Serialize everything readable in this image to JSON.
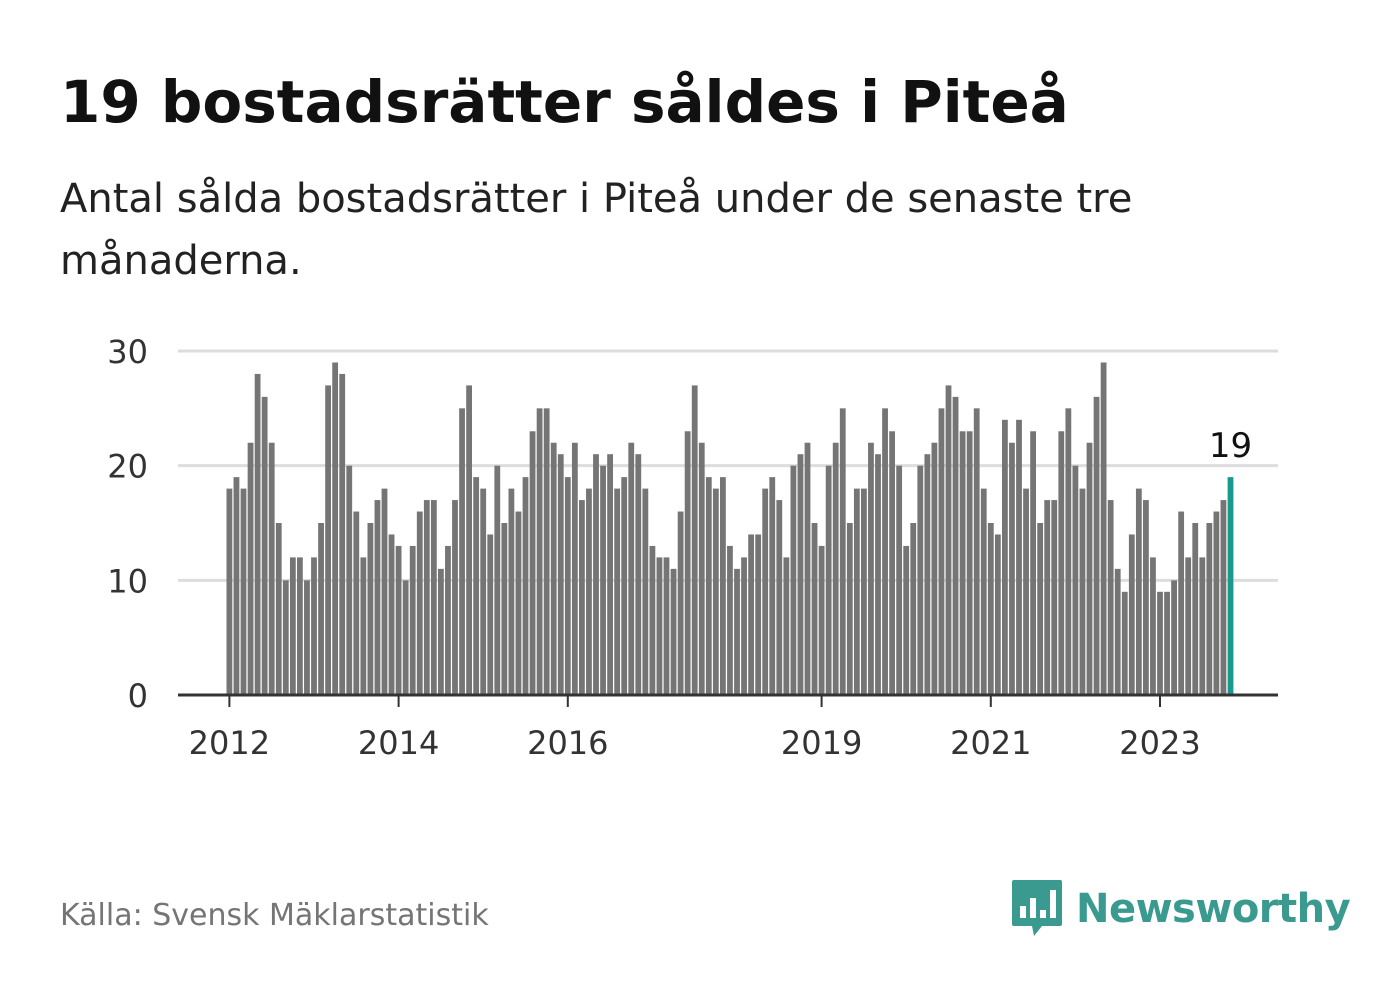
{
  "title": "19 bostadsrätter såldes i Piteå",
  "subtitle": "Antal sålda bostadsrätter i Piteå under de senaste tre månaderna.",
  "source": "Källa: Svensk Mäklarstatistik",
  "logo": {
    "name": "Newsworthy",
    "icon": "newsworthy-bar-chart-icon"
  },
  "colors": {
    "bar": "#757575",
    "highlight": "#1a9a8c",
    "grid": "#dddddd",
    "axis": "#333333"
  },
  "chart_data": {
    "type": "bar",
    "title": "19 bostadsrätter såldes i Piteå",
    "xlabel": "",
    "ylabel": "",
    "ylim": [
      0,
      30
    ],
    "yticks": [
      "0",
      "10",
      "20",
      "30"
    ],
    "ytick_values": [
      0,
      10,
      20,
      30
    ],
    "xticks": [
      {
        "label": "2012",
        "index": 0
      },
      {
        "label": "2014",
        "index": 24
      },
      {
        "label": "2016",
        "index": 48
      },
      {
        "label": "2019",
        "index": 84
      },
      {
        "label": "2021",
        "index": 108
      },
      {
        "label": "2023",
        "index": 132
      }
    ],
    "grid": true,
    "highlight_index": 142,
    "highlight_label": "19",
    "values": [
      18,
      19,
      18,
      22,
      28,
      26,
      22,
      15,
      10,
      12,
      12,
      10,
      12,
      15,
      27,
      29,
      28,
      20,
      16,
      12,
      15,
      17,
      18,
      14,
      13,
      10,
      13,
      16,
      17,
      17,
      11,
      13,
      17,
      25,
      27,
      19,
      18,
      14,
      20,
      15,
      18,
      16,
      19,
      23,
      25,
      25,
      22,
      21,
      19,
      22,
      17,
      18,
      21,
      20,
      21,
      18,
      19,
      22,
      21,
      18,
      13,
      12,
      12,
      11,
      16,
      23,
      27,
      22,
      19,
      18,
      19,
      13,
      11,
      12,
      14,
      14,
      18,
      19,
      17,
      12,
      20,
      21,
      22,
      15,
      13,
      20,
      22,
      25,
      15,
      18,
      18,
      22,
      21,
      25,
      23,
      20,
      13,
      15,
      20,
      21,
      22,
      25,
      27,
      26,
      23,
      23,
      25,
      18,
      15,
      14,
      24,
      22,
      24,
      18,
      23,
      15,
      17,
      17,
      23,
      25,
      20,
      18,
      22,
      26,
      29,
      17,
      11,
      9,
      14,
      18,
      17,
      12,
      9,
      9,
      10,
      16,
      12,
      15,
      12,
      15,
      16,
      17,
      19
    ]
  }
}
